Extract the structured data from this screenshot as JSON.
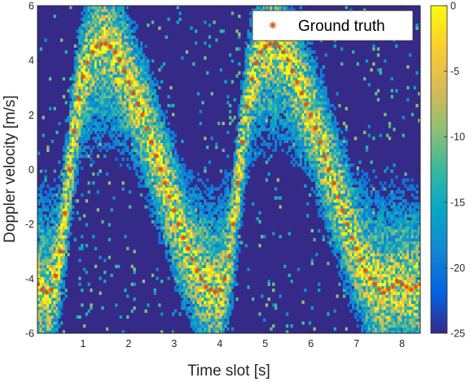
{
  "chart_data": {
    "type": "heatmap",
    "xlabel": "Time slot [s]",
    "ylabel": "Doppler velocity [m/s]",
    "xlim": [
      0,
      8.4
    ],
    "ylim": [
      -6,
      6
    ],
    "xticks": [
      1,
      2,
      3,
      4,
      5,
      6,
      7,
      8
    ],
    "yticks": [
      6,
      4,
      2,
      0,
      -2,
      -4,
      -6
    ],
    "colorbar": {
      "range": [
        -25,
        0
      ],
      "ticks": [
        0,
        -5,
        -10,
        -15,
        -20,
        -25
      ],
      "colormap": "parula"
    },
    "legend": {
      "placement": "top-right",
      "entries": [
        "Ground truth"
      ]
    },
    "series": [
      {
        "name": "Ground truth",
        "marker": "asterisk",
        "color": "#d95319",
        "x": [
          0.0,
          0.1,
          0.2,
          0.3,
          0.4,
          0.5,
          0.6,
          0.7,
          0.8,
          0.9,
          1.0,
          1.1,
          1.2,
          1.3,
          1.4,
          1.5,
          1.6,
          1.7,
          1.8,
          1.9,
          2.0,
          2.1,
          2.2,
          2.3,
          2.4,
          2.5,
          2.6,
          2.7,
          2.8,
          2.9,
          3.0,
          3.1,
          3.2,
          3.3,
          3.4,
          3.5,
          3.6,
          3.7,
          3.8,
          3.9,
          4.0,
          4.1,
          4.2,
          4.3,
          4.4,
          4.5,
          4.6,
          4.7,
          4.8,
          4.9,
          5.0,
          5.1,
          5.2,
          5.3,
          5.4,
          5.5,
          5.6,
          5.7,
          5.8,
          5.9,
          6.0,
          6.1,
          6.2,
          6.3,
          6.4,
          6.5,
          6.6,
          6.7,
          6.8,
          6.9,
          7.0,
          7.1,
          7.2,
          7.3,
          7.4,
          7.5,
          7.6,
          7.7,
          7.8,
          7.9,
          8.0,
          8.1,
          8.2,
          8.3,
          8.4
        ],
        "y": [
          -4.2,
          -4.4,
          -4.5,
          -4.4,
          -3.9,
          -3.0,
          -1.6,
          0.0,
          1.4,
          2.6,
          3.4,
          3.9,
          4.3,
          4.5,
          4.6,
          4.6,
          4.5,
          4.3,
          4.0,
          3.6,
          3.2,
          2.8,
          2.4,
          2.0,
          1.5,
          1.0,
          0.5,
          0.0,
          -0.5,
          -1.0,
          -1.5,
          -2.0,
          -2.5,
          -2.9,
          -3.3,
          -3.7,
          -4.0,
          -4.3,
          -4.4,
          -4.5,
          -4.4,
          -4.0,
          -3.2,
          -2.0,
          -0.5,
          1.0,
          2.3,
          3.3,
          3.9,
          4.3,
          4.5,
          4.6,
          4.6,
          4.5,
          4.3,
          4.0,
          3.6,
          3.2,
          2.8,
          2.4,
          2.0,
          1.5,
          1.0,
          0.5,
          0.0,
          -0.5,
          -1.0,
          -1.5,
          -2.0,
          -2.5,
          -2.9,
          -3.3,
          -3.7,
          -4.0,
          -4.2,
          -4.4,
          -4.5,
          -4.4,
          -4.3,
          -4.1,
          -4.2,
          -4.3,
          -4.4,
          -4.3,
          -4.2
        ]
      }
    ]
  }
}
